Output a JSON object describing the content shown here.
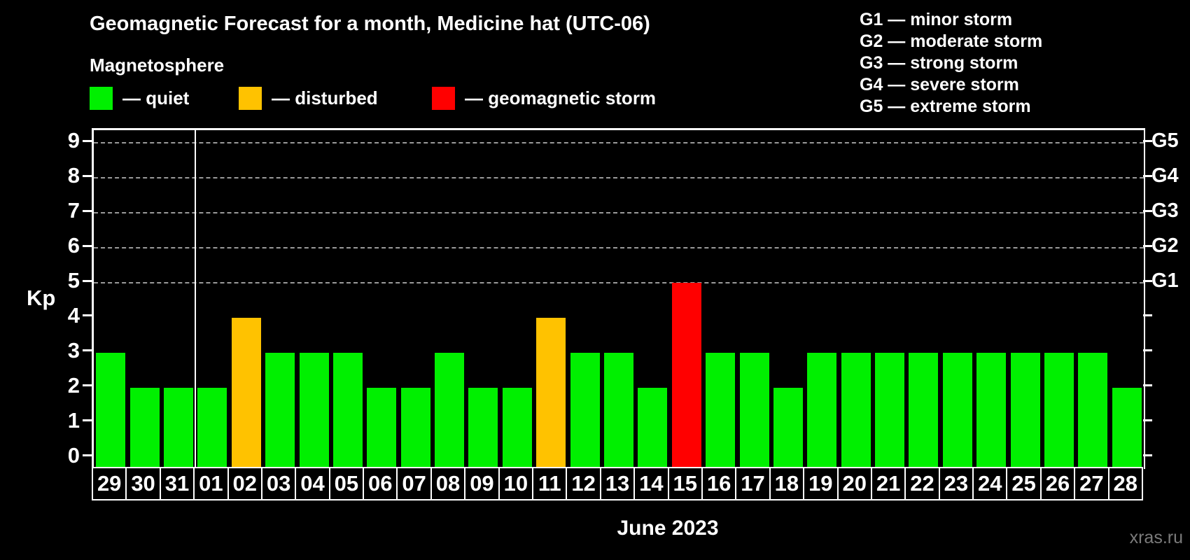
{
  "header": {
    "title": "Geomagnetic Forecast for a month, Medicine hat (UTC-06)"
  },
  "legend": {
    "title": "Magnetosphere",
    "items": [
      {
        "key": "quiet",
        "label": "— quiet",
        "color": "#00f000"
      },
      {
        "key": "disturbed",
        "label": "— disturbed",
        "color": "#ffc200"
      },
      {
        "key": "storm",
        "label": "— geomagnetic storm",
        "color": "#ff0000"
      }
    ]
  },
  "g_legend": {
    "items": [
      {
        "text": "G1 — minor storm"
      },
      {
        "text": "G2 — moderate storm"
      },
      {
        "text": "G3 — strong storm"
      },
      {
        "text": "G4 — severe storm"
      },
      {
        "text": "G5 — extreme storm"
      }
    ]
  },
  "axes": {
    "left_label": "Kp",
    "left_ticks": [
      0,
      1,
      2,
      3,
      4,
      5,
      6,
      7,
      8,
      9
    ],
    "right_labels": [
      {
        "value": 5,
        "text": "G1"
      },
      {
        "value": 6,
        "text": "G2"
      },
      {
        "value": 7,
        "text": "G3"
      },
      {
        "value": 8,
        "text": "G4"
      },
      {
        "value": 9,
        "text": "G5"
      }
    ],
    "x_title": "June 2023"
  },
  "watermark": "xras.ru",
  "colors": {
    "background": "#000000",
    "bar_quiet": "#00f000",
    "bar_disturbed": "#ffc200",
    "bar_storm": "#ff0000",
    "grid": "#9a9a9a",
    "frame": "#ffffff",
    "watermark": "#7b7b7b"
  },
  "chart_data": {
    "type": "bar",
    "title": "Geomagnetic Forecast for a month, Medicine hat (UTC-06)",
    "subtitle": "Magnetosphere",
    "xlabel": "June 2023",
    "ylabel": "Kp",
    "ylim": [
      0,
      9
    ],
    "grid_levels": [
      5,
      6,
      7,
      8,
      9
    ],
    "right_axis": {
      "G1": 5,
      "G2": 6,
      "G3": 7,
      "G4": 8,
      "G5": 9
    },
    "legend_position": "top",
    "month_boundary_after_index": 2,
    "categories": [
      "29",
      "30",
      "31",
      "01",
      "02",
      "03",
      "04",
      "05",
      "06",
      "07",
      "08",
      "09",
      "10",
      "11",
      "12",
      "13",
      "14",
      "15",
      "16",
      "17",
      "18",
      "19",
      "20",
      "21",
      "22",
      "23",
      "24",
      "25",
      "26",
      "27",
      "28"
    ],
    "values": [
      3,
      2,
      2,
      2,
      4,
      3,
      3,
      3,
      2,
      2,
      3,
      2,
      2,
      4,
      3,
      3,
      2,
      5,
      3,
      3,
      2,
      3,
      3,
      3,
      3,
      3,
      3,
      3,
      3,
      3,
      2
    ],
    "statuses": [
      "quiet",
      "quiet",
      "quiet",
      "quiet",
      "disturbed",
      "quiet",
      "quiet",
      "quiet",
      "quiet",
      "quiet",
      "quiet",
      "quiet",
      "quiet",
      "disturbed",
      "quiet",
      "quiet",
      "quiet",
      "storm",
      "quiet",
      "quiet",
      "quiet",
      "quiet",
      "quiet",
      "quiet",
      "quiet",
      "quiet",
      "quiet",
      "quiet",
      "quiet",
      "quiet",
      "quiet"
    ]
  }
}
